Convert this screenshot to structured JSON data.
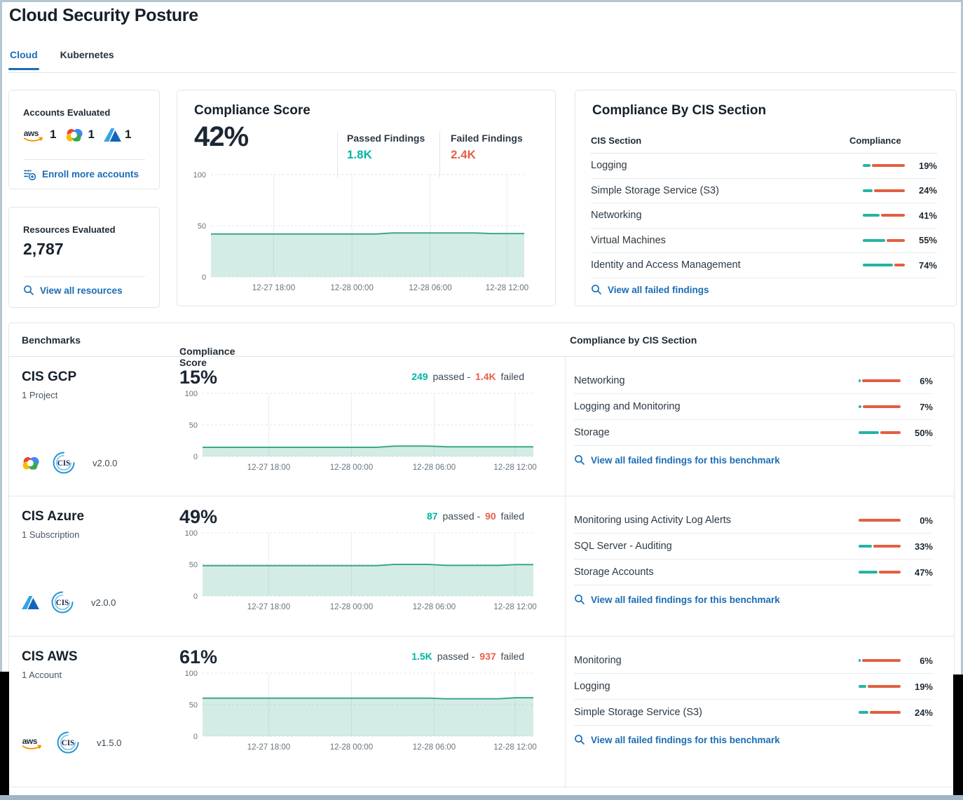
{
  "colors": {
    "teal": "#00b5a3",
    "red": "#e8604a",
    "bar_teal": "#27b3a2",
    "bar_red": "#e25f40",
    "link_blue": "#1a6cb4",
    "chart_line": "#3ba78c"
  },
  "header": {
    "title": "Cloud Security Posture",
    "tabs": [
      {
        "label": "Cloud"
      },
      {
        "label": "Kubernetes"
      }
    ]
  },
  "accounts_card": {
    "title": "Accounts Evaluated",
    "providers": [
      {
        "icon": "aws",
        "count": "1"
      },
      {
        "icon": "gcp",
        "count": "1"
      },
      {
        "icon": "azure",
        "count": "1"
      }
    ],
    "link_label": "Enroll more accounts"
  },
  "resources_card": {
    "title": "Resources Evaluated",
    "count": "2,787",
    "link_label": "View all resources"
  },
  "score_card": {
    "title": "Compliance Score",
    "score": "42%",
    "passed_label": "Passed Findings",
    "passed_value": "1.8K",
    "failed_label": "Failed Findings",
    "failed_value": "2.4K"
  },
  "cis_card": {
    "title": "Compliance By CIS Section",
    "section_col": "CIS Section",
    "compliance_col": "Compliance",
    "rows": [
      {
        "label": "Logging",
        "pct": 19,
        "pct_label": "19%"
      },
      {
        "label": "Simple Storage Service (S3)",
        "pct": 24,
        "pct_label": "24%"
      },
      {
        "label": "Networking",
        "pct": 41,
        "pct_label": "41%"
      },
      {
        "label": "Virtual Machines",
        "pct": 55,
        "pct_label": "55%"
      },
      {
        "label": "Identity and Access Management",
        "pct": 74,
        "pct_label": "74%"
      }
    ],
    "link_label": "View all failed findings"
  },
  "benchmarks": {
    "col_benchmarks": "Benchmarks",
    "col_score": "Compliance Score",
    "sort_indicator": "↑",
    "col_sections": "Compliance by CIS Section",
    "passed_word": "passed -",
    "failed_word": "failed",
    "rows": [
      {
        "name": "CIS GCP",
        "scope": "1 Project",
        "provider_icon": "gcp",
        "framework_icon": "cis",
        "version": "v2.0.0",
        "score": "15%",
        "passed_value": "249",
        "failed_value": "1.4K",
        "link_label": "View all failed findings for this benchmark",
        "sections": [
          {
            "label": "Networking",
            "pct": 6,
            "pct_label": "6%"
          },
          {
            "label": "Logging and Monitoring",
            "pct": 7,
            "pct_label": "7%"
          },
          {
            "label": "Storage",
            "pct": 50,
            "pct_label": "50%"
          }
        ]
      },
      {
        "name": "CIS Azure",
        "scope": "1 Subscription",
        "provider_icon": "azure",
        "framework_icon": "cis",
        "version": "v2.0.0",
        "score": "49%",
        "passed_value": "87",
        "failed_value": "90",
        "link_label": "View all failed findings for this benchmark",
        "sections": [
          {
            "label": "Monitoring using Activity Log Alerts",
            "pct": 0,
            "pct_label": "0%"
          },
          {
            "label": "SQL Server - Auditing",
            "pct": 33,
            "pct_label": "33%"
          },
          {
            "label": "Storage Accounts",
            "pct": 47,
            "pct_label": "47%"
          }
        ]
      },
      {
        "name": "CIS AWS",
        "scope": "1 Account",
        "provider_icon": "aws",
        "framework_icon": "cis",
        "version": "v1.5.0",
        "score": "61%",
        "passed_value": "1.5K",
        "failed_value": "937",
        "link_label": "View all failed findings for this benchmark",
        "sections": [
          {
            "label": "Monitoring",
            "pct": 6,
            "pct_label": "6%"
          },
          {
            "label": "Logging",
            "pct": 19,
            "pct_label": "19%"
          },
          {
            "label": "Simple Storage Service (S3)",
            "pct": 24,
            "pct_label": "24%"
          }
        ]
      }
    ]
  },
  "chart_data": [
    {
      "type": "area",
      "name": "compliance_score_overview",
      "ylim": [
        0,
        100
      ],
      "yticks": [
        0,
        50,
        100
      ],
      "x_tick_labels": [
        "12-27 18:00",
        "12-28 00:00",
        "12-28 06:00",
        "12-28 12:00"
      ],
      "x_tick_pos": [
        0.2,
        0.45,
        0.7,
        0.945
      ],
      "values": [
        42,
        42,
        42,
        42,
        42,
        42,
        42,
        42,
        42,
        42,
        42,
        43,
        43,
        43,
        43,
        43,
        43,
        42.4,
        42.4,
        42.4
      ]
    },
    {
      "type": "area",
      "name": "cis_gcp_score",
      "ylim": [
        0,
        100
      ],
      "yticks": [
        0,
        50,
        100
      ],
      "x_tick_labels": [
        "12-27 18:00",
        "12-28 00:00",
        "12-28 06:00",
        "12-28 12:00"
      ],
      "x_tick_pos": [
        0.2,
        0.45,
        0.7,
        0.945
      ],
      "values": [
        14.5,
        14.5,
        14.5,
        14.5,
        14.5,
        14.5,
        14.5,
        14.5,
        14.5,
        14.5,
        14.5,
        16.3,
        16.3,
        16.3,
        15.3,
        15.3,
        15.3,
        15.3,
        15.3,
        15.3
      ]
    },
    {
      "type": "area",
      "name": "cis_azure_score",
      "ylim": [
        0,
        100
      ],
      "yticks": [
        0,
        50,
        100
      ],
      "x_tick_labels": [
        "12-27 18:00",
        "12-28 00:00",
        "12-28 06:00",
        "12-28 12:00"
      ],
      "x_tick_pos": [
        0.2,
        0.45,
        0.7,
        0.945
      ],
      "values": [
        48,
        48,
        48,
        48,
        48,
        48,
        48,
        48,
        48,
        48,
        48,
        50,
        50,
        50,
        48.5,
        48.5,
        48.5,
        48.5,
        49.8,
        49.8
      ]
    },
    {
      "type": "area",
      "name": "cis_aws_score",
      "ylim": [
        0,
        100
      ],
      "yticks": [
        0,
        50,
        100
      ],
      "x_tick_labels": [
        "12-27 18:00",
        "12-28 00:00",
        "12-28 06:00",
        "12-28 12:00"
      ],
      "x_tick_pos": [
        0.2,
        0.45,
        0.7,
        0.945
      ],
      "values": [
        60.3,
        60.3,
        60.3,
        60.3,
        60.3,
        60.3,
        60.3,
        60.3,
        60.3,
        60.3,
        60.3,
        60.3,
        60.3,
        60.3,
        59.3,
        59.3,
        59.3,
        59.3,
        61,
        61
      ]
    }
  ]
}
